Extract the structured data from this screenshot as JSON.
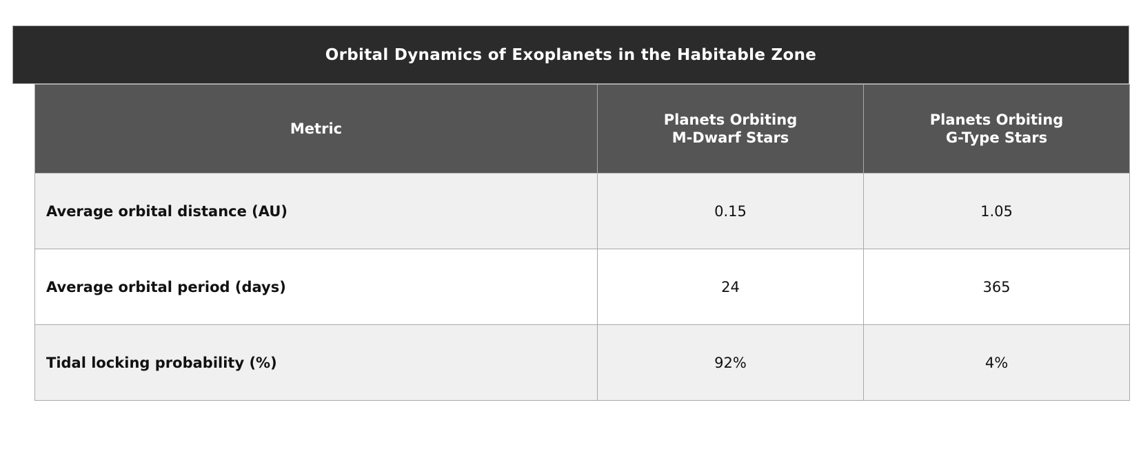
{
  "chart_data": {
    "type": "table",
    "title": "Orbital Dynamics of Exoplanets in the Habitable Zone",
    "columns": [
      {
        "line1": "Metric",
        "line2": ""
      },
      {
        "line1": "Planets Orbiting",
        "line2": "M-Dwarf Stars"
      },
      {
        "line1": "Planets Orbiting",
        "line2": "G-Type Stars"
      }
    ],
    "rows": [
      {
        "metric": "Average orbital distance (AU)",
        "m_dwarf": "0.15",
        "g_type": "1.05"
      },
      {
        "metric": "Average orbital period (days)",
        "m_dwarf": "24",
        "g_type": "365"
      },
      {
        "metric": "Tidal locking probability (%)",
        "m_dwarf": "92%",
        "g_type": "4%"
      }
    ]
  },
  "colors": {
    "title_background": "#2b2b2b",
    "header_background": "#555555",
    "row_shaded": "#f0f0f0",
    "row_plain": "#ffffff",
    "border": "#a9a9a9"
  }
}
